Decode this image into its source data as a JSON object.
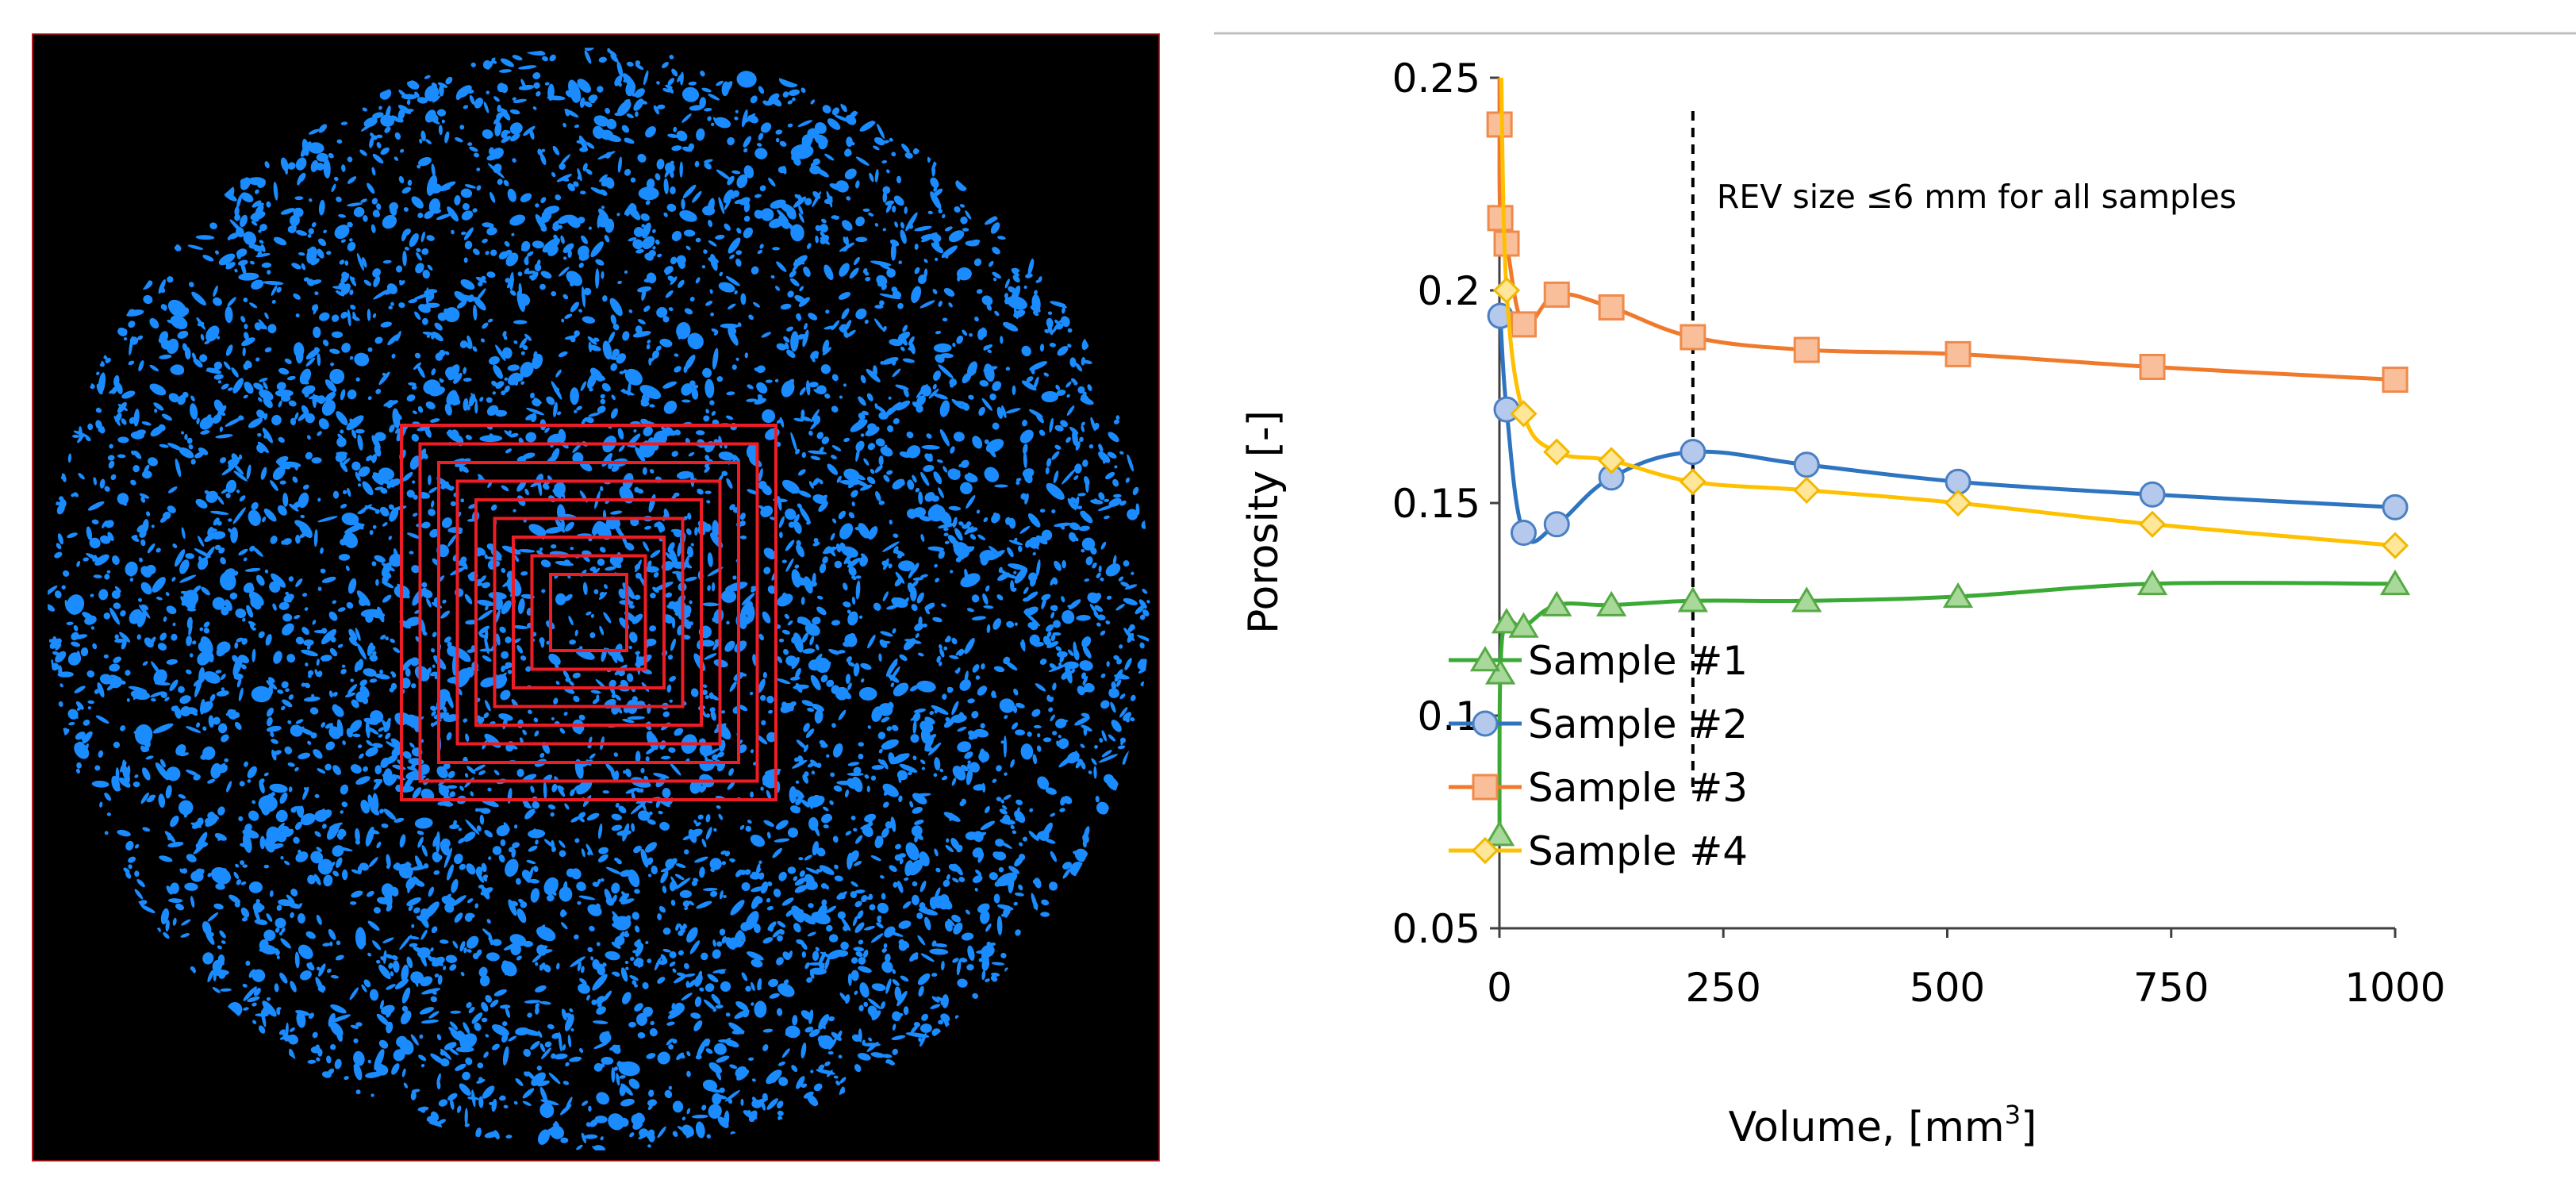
{
  "colors": {
    "scan_background": "#000000",
    "pore_blue": "#1a8cff",
    "subvolume_red": "#ee1c25",
    "axis": "#404040",
    "top_rule": "#bfbfbf"
  },
  "scan": {
    "subvolume_count": 9,
    "description_icon": "ct-slice-image"
  },
  "chart_data": {
    "type": "line",
    "xlabel_main": "Volume, [mm",
    "xlabel_sup": "3",
    "xlabel_close": "]",
    "ylabel": "Porosity [-]",
    "xlim": [
      0,
      1000
    ],
    "ylim": [
      0.05,
      0.25
    ],
    "x_ticks": [
      0,
      250,
      500,
      750,
      1000
    ],
    "x_tick_labels": [
      "0",
      "250",
      "500",
      "750",
      "1000"
    ],
    "y_ticks": [
      0.05,
      0.1,
      0.15,
      0.2,
      0.25
    ],
    "y_tick_labels": [
      "0.05",
      "0.1",
      "0.15",
      "0.2",
      "0.25"
    ],
    "grid": false,
    "legend_position": "bottom-right",
    "annotation": {
      "text": "REV size ≤6 mm for all samples",
      "x": 216
    },
    "series": [
      {
        "name": "Sample #1",
        "color": "#3aaa35",
        "marker": "triangle",
        "marker_fill": "#a8d89a",
        "marker_stroke": "#55aa44",
        "x": [
          0.125,
          1,
          8,
          27,
          64,
          125,
          216,
          343,
          512,
          729,
          1000
        ],
        "y": [
          0.072,
          0.11,
          0.122,
          0.121,
          0.126,
          0.126,
          0.127,
          0.127,
          0.128,
          0.131,
          0.131
        ]
      },
      {
        "name": "Sample #2",
        "color": "#2e74c0",
        "marker": "circle",
        "marker_fill": "#b4c9eb",
        "marker_stroke": "#4a7fc1",
        "x": [
          1,
          8,
          27,
          64,
          125,
          216,
          343,
          512,
          729,
          1000
        ],
        "y": [
          0.194,
          0.172,
          0.143,
          0.145,
          0.156,
          0.162,
          0.159,
          0.155,
          0.152,
          0.149
        ]
      },
      {
        "name": "Sample #3",
        "color": "#f07a2c",
        "marker": "square",
        "marker_fill": "#f9bf9a",
        "marker_stroke": "#ef8a4a",
        "x": [
          0.125,
          1,
          8,
          27,
          64,
          125,
          216,
          343,
          512,
          729,
          1000
        ],
        "y": [
          0.239,
          0.217,
          0.211,
          0.192,
          0.199,
          0.196,
          0.189,
          0.186,
          0.185,
          0.182,
          0.179
        ]
      },
      {
        "name": "Sample #4",
        "color": "#ffc000",
        "marker": "diamond",
        "marker_fill": "#ffe699",
        "marker_stroke": "#f2b800",
        "x": [
          8,
          27,
          64,
          125,
          216,
          343,
          512,
          729,
          1000
        ],
        "y": [
          0.2,
          0.171,
          0.162,
          0.16,
          0.155,
          0.153,
          0.15,
          0.145,
          0.14
        ]
      }
    ]
  }
}
